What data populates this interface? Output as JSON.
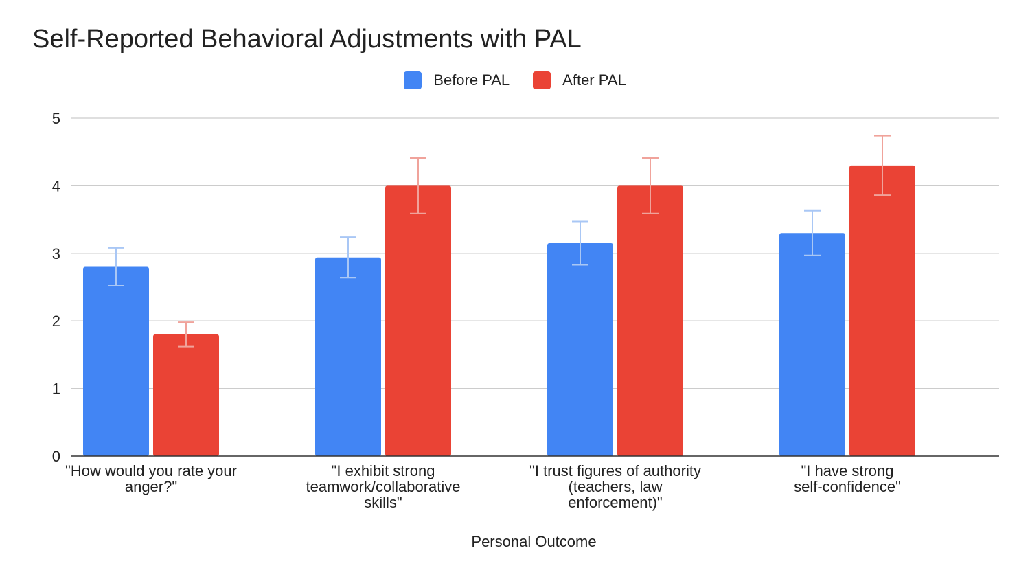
{
  "chart_data": {
    "type": "bar",
    "title": "Self-Reported Behavioral Adjustments with PAL",
    "xlabel": "Personal Outcome",
    "ylabel": "",
    "ylim": [
      0,
      5
    ],
    "yticks": [
      "0",
      "1",
      "2",
      "3",
      "4",
      "5"
    ],
    "grid": true,
    "legend_position": "top-center",
    "categories": [
      "\"How would you rate your anger?\"",
      "\"I exhibit strong teamwork/collaborative skills\"",
      "\"I trust figures of authority (teachers, law enforcement)\"",
      "\"I have strong self-confidence\""
    ],
    "category_lines": [
      "\"How would you rate your\nanger?\"",
      "\"I exhibit strong\nteamwork/collaborative\nskills\"",
      "\"I trust figures of authority\n(teachers, law\nenforcement)\"",
      "\"I have strong\nself-confidence\""
    ],
    "series": [
      {
        "name": "Before PAL",
        "color": "#4285f4",
        "error_color": "#a9c7f5",
        "values": [
          2.8,
          2.94,
          3.15,
          3.3
        ],
        "error": [
          0.28,
          0.3,
          0.32,
          0.33
        ]
      },
      {
        "name": "After PAL",
        "color": "#ea4335",
        "error_color": "#f0a39b",
        "values": [
          1.8,
          4.0,
          4.0,
          4.3
        ],
        "error": [
          0.18,
          0.41,
          0.41,
          0.44
        ]
      }
    ]
  }
}
